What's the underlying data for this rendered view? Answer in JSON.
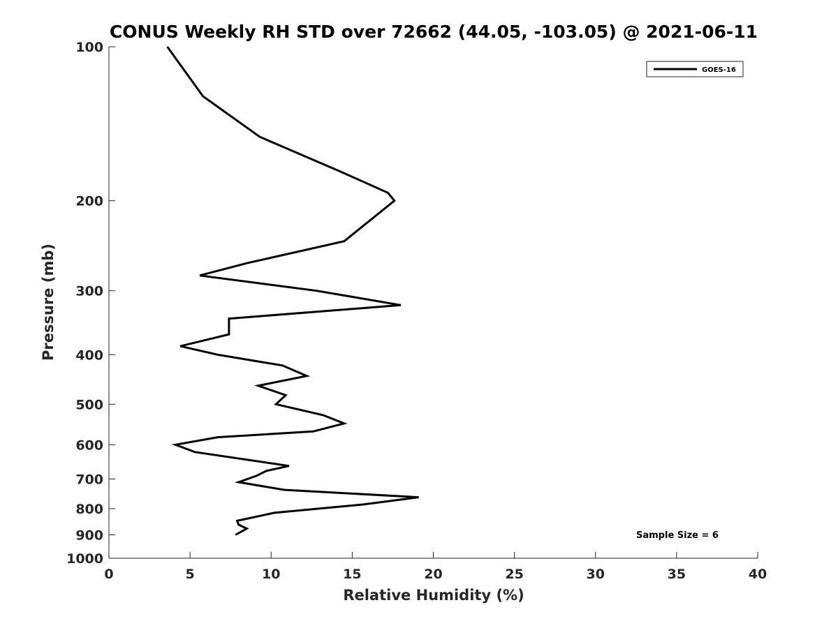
{
  "chart_data": {
    "type": "line",
    "title": "CONUS Weekly RH STD over 72662 (44.05, -103.05) @ 2021-06-11",
    "xlabel": "Relative Humidity (%)",
    "ylabel": "Pressure (mb)",
    "xlim": [
      0,
      40
    ],
    "ylim": [
      100,
      1000
    ],
    "yscale": "log",
    "y_reversed": true,
    "grid": false,
    "legend_position": "top-right",
    "xticks": [
      0,
      5,
      10,
      15,
      20,
      25,
      30,
      35,
      40
    ],
    "yticks": [
      100,
      200,
      300,
      400,
      500,
      600,
      700,
      800,
      900,
      1000
    ],
    "series": [
      {
        "name": "GOES-16",
        "color": "#000000",
        "points": [
          {
            "x": 3.6,
            "p": 100
          },
          {
            "x": 5.8,
            "p": 125
          },
          {
            "x": 9.3,
            "p": 150
          },
          {
            "x": 14.2,
            "p": 175
          },
          {
            "x": 17.2,
            "p": 193
          },
          {
            "x": 17.6,
            "p": 200
          },
          {
            "x": 14.5,
            "p": 240
          },
          {
            "x": 8.5,
            "p": 265
          },
          {
            "x": 5.6,
            "p": 280
          },
          {
            "x": 12.8,
            "p": 300
          },
          {
            "x": 18.0,
            "p": 320
          },
          {
            "x": 7.4,
            "p": 340
          },
          {
            "x": 7.4,
            "p": 365
          },
          {
            "x": 4.4,
            "p": 385
          },
          {
            "x": 6.7,
            "p": 400
          },
          {
            "x": 10.7,
            "p": 420
          },
          {
            "x": 12.2,
            "p": 440
          },
          {
            "x": 9.2,
            "p": 460
          },
          {
            "x": 10.9,
            "p": 480
          },
          {
            "x": 10.3,
            "p": 500
          },
          {
            "x": 13.2,
            "p": 525
          },
          {
            "x": 14.5,
            "p": 545
          },
          {
            "x": 12.6,
            "p": 565
          },
          {
            "x": 6.7,
            "p": 580
          },
          {
            "x": 4.1,
            "p": 600
          },
          {
            "x": 5.3,
            "p": 620
          },
          {
            "x": 11.1,
            "p": 660
          },
          {
            "x": 9.7,
            "p": 675
          },
          {
            "x": 9.1,
            "p": 690
          },
          {
            "x": 8.0,
            "p": 710
          },
          {
            "x": 10.8,
            "p": 735
          },
          {
            "x": 19.1,
            "p": 760
          },
          {
            "x": 15.7,
            "p": 785
          },
          {
            "x": 10.2,
            "p": 815
          },
          {
            "x": 7.9,
            "p": 845
          },
          {
            "x": 8.0,
            "p": 860
          },
          {
            "x": 8.5,
            "p": 875
          },
          {
            "x": 7.8,
            "p": 900
          }
        ]
      }
    ],
    "annotation": "Sample Size = 6"
  }
}
